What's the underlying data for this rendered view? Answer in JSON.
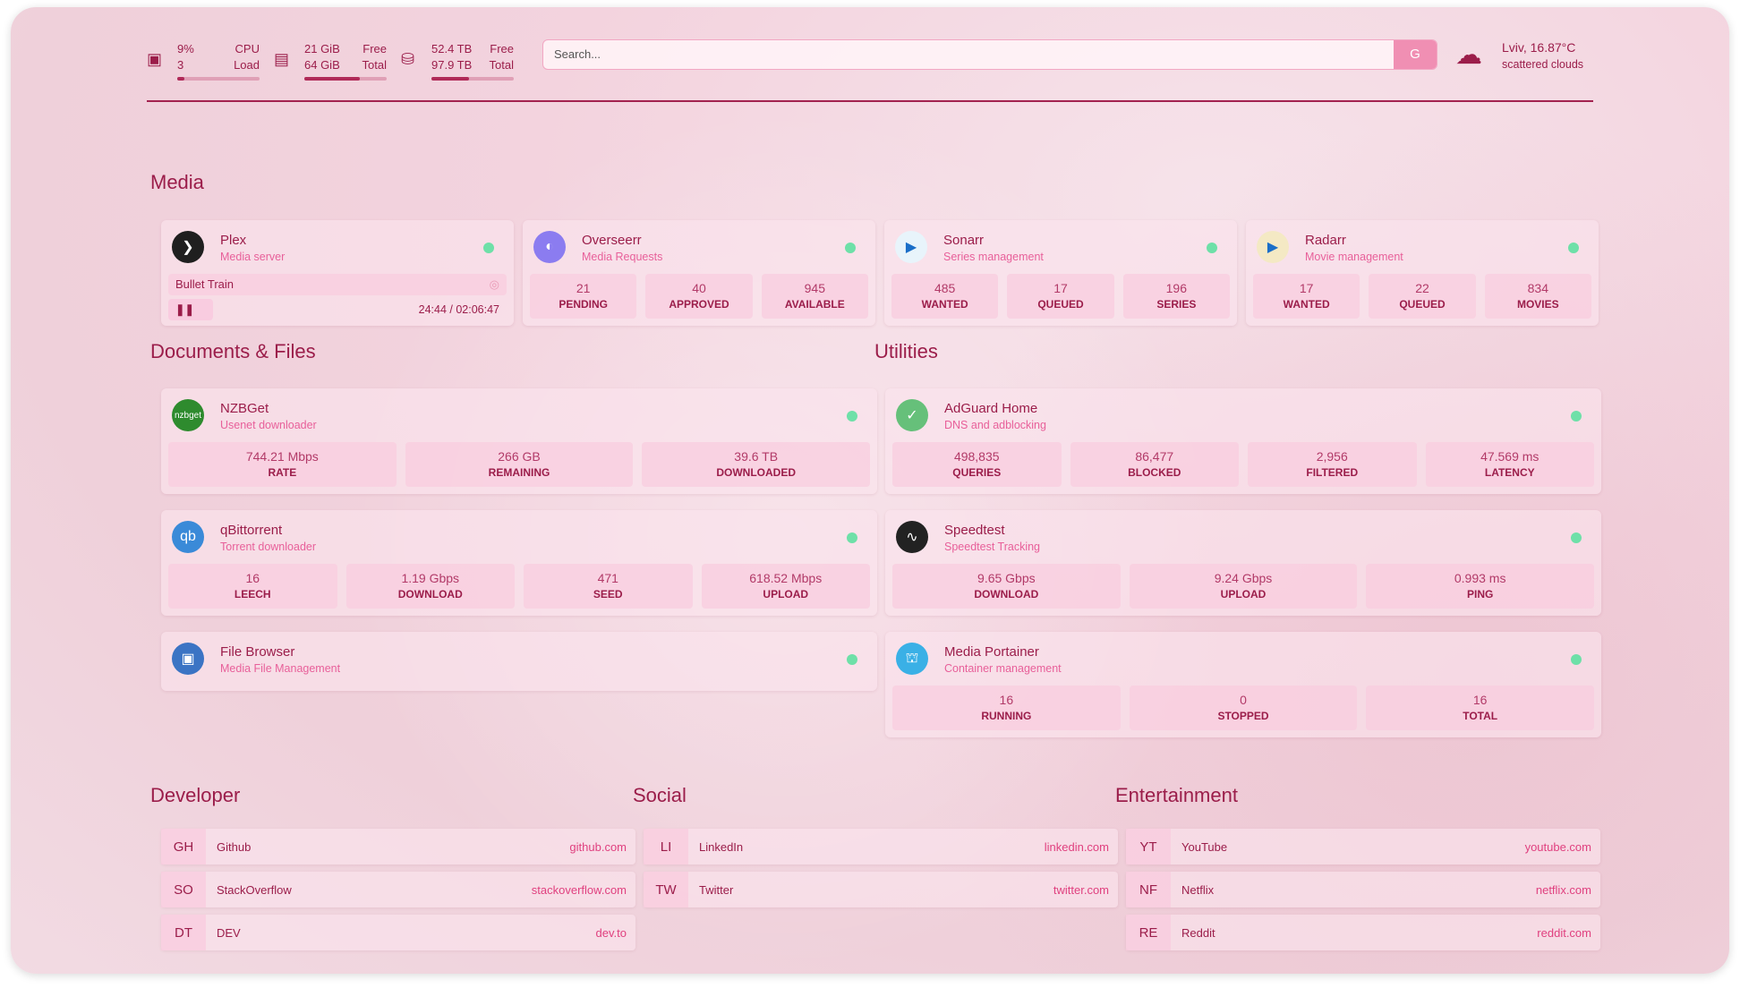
{
  "header": {
    "cpu": {
      "value": "9%",
      "label": "CPU",
      "sub_value": "3",
      "sub_label": "Load",
      "percent": 9
    },
    "ram": {
      "value": "21 GiB",
      "label": "Free",
      "sub_value": "64 GiB",
      "sub_label": "Total",
      "percent": 67
    },
    "disk": {
      "value": "52.4 TB",
      "label": "Free",
      "sub_value": "97.9 TB",
      "sub_label": "Total",
      "percent": 46
    },
    "search": {
      "placeholder": "Search...",
      "button": "G"
    },
    "weather": {
      "location": "Lviv, 16.87°C",
      "desc": "scattered clouds"
    }
  },
  "sections": {
    "media": "Media",
    "docs": "Documents & Files",
    "utilities": "Utilities",
    "developer": "Developer",
    "social": "Social",
    "entertainment": "Entertainment"
  },
  "media": [
    {
      "name": "Plex",
      "desc": "Media server",
      "now_playing": "Bullet Train",
      "time": "24:44 / 02:06:47"
    },
    {
      "name": "Overseerr",
      "desc": "Media Requests",
      "stats": [
        {
          "v": "21",
          "l": "PENDING"
        },
        {
          "v": "40",
          "l": "APPROVED"
        },
        {
          "v": "945",
          "l": "AVAILABLE"
        }
      ]
    },
    {
      "name": "Sonarr",
      "desc": "Series management",
      "stats": [
        {
          "v": "485",
          "l": "WANTED"
        },
        {
          "v": "17",
          "l": "QUEUED"
        },
        {
          "v": "196",
          "l": "SERIES"
        }
      ]
    },
    {
      "name": "Radarr",
      "desc": "Movie management",
      "stats": [
        {
          "v": "17",
          "l": "WANTED"
        },
        {
          "v": "22",
          "l": "QUEUED"
        },
        {
          "v": "834",
          "l": "MOVIES"
        }
      ]
    }
  ],
  "docs": [
    {
      "name": "NZBGet",
      "desc": "Usenet downloader",
      "logo": "nzbget",
      "stats": [
        {
          "v": "744.21 Mbps",
          "l": "RATE"
        },
        {
          "v": "266 GB",
          "l": "REMAINING"
        },
        {
          "v": "39.6 TB",
          "l": "DOWNLOADED"
        }
      ]
    },
    {
      "name": "qBittorrent",
      "desc": "Torrent downloader",
      "logo": "qb",
      "stats": [
        {
          "v": "16",
          "l": "LEECH"
        },
        {
          "v": "1.19 Gbps",
          "l": "DOWNLOAD"
        },
        {
          "v": "471",
          "l": "SEED"
        },
        {
          "v": "618.52 Mbps",
          "l": "UPLOAD"
        }
      ]
    },
    {
      "name": "File Browser",
      "desc": "Media File Management"
    }
  ],
  "utilities": [
    {
      "name": "AdGuard Home",
      "desc": "DNS and adblocking",
      "stats": [
        {
          "v": "498,835",
          "l": "QUERIES"
        },
        {
          "v": "86,477",
          "l": "BLOCKED"
        },
        {
          "v": "2,956",
          "l": "FILTERED"
        },
        {
          "v": "47.569 ms",
          "l": "LATENCY"
        }
      ]
    },
    {
      "name": "Speedtest",
      "desc": "Speedtest Tracking",
      "stats": [
        {
          "v": "9.65 Gbps",
          "l": "DOWNLOAD"
        },
        {
          "v": "9.24 Gbps",
          "l": "UPLOAD"
        },
        {
          "v": "0.993 ms",
          "l": "PING"
        }
      ]
    },
    {
      "name": "Media Portainer",
      "desc": "Container management",
      "stats": [
        {
          "v": "16",
          "l": "RUNNING"
        },
        {
          "v": "0",
          "l": "STOPPED"
        },
        {
          "v": "16",
          "l": "TOTAL"
        }
      ]
    }
  ],
  "developer": [
    {
      "ab": "GH",
      "t": "Github",
      "u": "github.com"
    },
    {
      "ab": "SO",
      "t": "StackOverflow",
      "u": "stackoverflow.com"
    },
    {
      "ab": "DT",
      "t": "DEV",
      "u": "dev.to"
    }
  ],
  "social": [
    {
      "ab": "LI",
      "t": "LinkedIn",
      "u": "linkedin.com"
    },
    {
      "ab": "TW",
      "t": "Twitter",
      "u": "twitter.com"
    }
  ],
  "entertainment": [
    {
      "ab": "YT",
      "t": "YouTube",
      "u": "youtube.com"
    },
    {
      "ab": "NF",
      "t": "Netflix",
      "u": "netflix.com"
    },
    {
      "ab": "RE",
      "t": "Reddit",
      "u": "reddit.com"
    }
  ],
  "colors": {
    "accent": "#9b1d4a",
    "link": "#e0407f",
    "status_ok": "#6ee0a8"
  }
}
